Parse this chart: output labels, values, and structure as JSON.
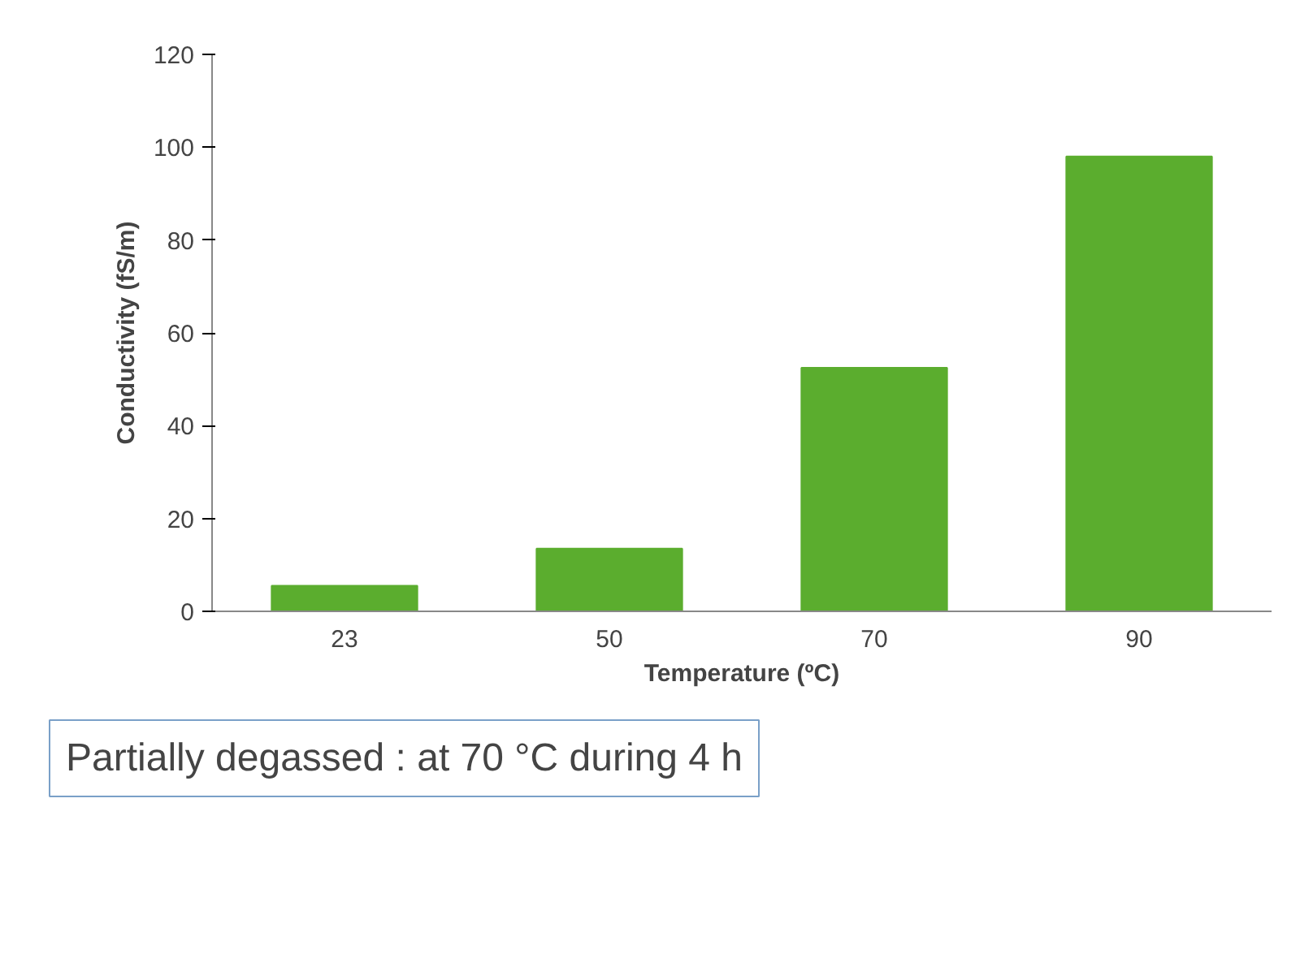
{
  "chart_data": {
    "type": "bar",
    "xlabel": "Temperature (ºC)",
    "ylabel": "Conductivity (fS/m)",
    "categories": [
      "23",
      "50",
      "70",
      "90"
    ],
    "values": [
      5.5,
      13.5,
      52.5,
      98
    ],
    "color": "#5bad2e",
    "ylim": [
      0,
      120
    ],
    "yticks": [
      0,
      20,
      40,
      60,
      80,
      100,
      120
    ],
    "grid": false,
    "annotations": [
      "Partially degassed : at 70 °C during 4 h"
    ]
  }
}
